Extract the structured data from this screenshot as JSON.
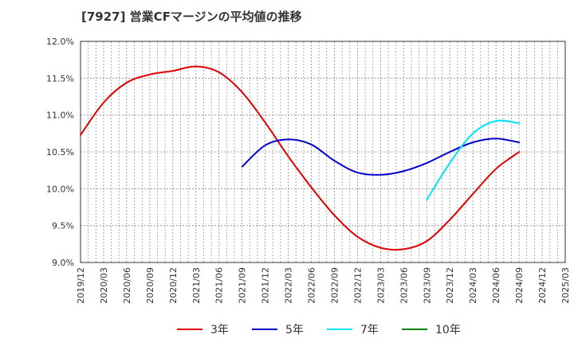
{
  "chart_data": {
    "type": "line",
    "title": "[7927]  営業CFマージンの平均値の推移",
    "x_ticks": [
      "2019/12",
      "2020/03",
      "2020/06",
      "2020/09",
      "2020/12",
      "2021/03",
      "2021/06",
      "2021/09",
      "2021/12",
      "2022/03",
      "2022/06",
      "2022/09",
      "2022/12",
      "2023/03",
      "2023/06",
      "2023/09",
      "2023/12",
      "2024/03",
      "2024/06",
      "2024/09",
      "2024/12",
      "2025/03"
    ],
    "y_ticks": [
      "9.0%",
      "9.5%",
      "10.0%",
      "10.5%",
      "11.0%",
      "11.5%",
      "12.0%"
    ],
    "ylim": [
      9.0,
      12.0
    ],
    "grid": true,
    "legend_position": "bottom",
    "series": [
      {
        "name": "3年",
        "color": "#e00000",
        "x": [
          "2019/12",
          "2020/03",
          "2020/06",
          "2020/09",
          "2020/12",
          "2021/03",
          "2021/06",
          "2021/09",
          "2021/12",
          "2022/03",
          "2022/06",
          "2022/09",
          "2022/12",
          "2023/03",
          "2023/06",
          "2023/09",
          "2023/12",
          "2024/03",
          "2024/06",
          "2024/09"
        ],
        "values": [
          10.73,
          11.17,
          11.44,
          11.55,
          11.6,
          11.66,
          11.58,
          11.31,
          10.9,
          10.44,
          10.02,
          9.64,
          9.35,
          9.2,
          9.18,
          9.29,
          9.58,
          9.93,
          10.27,
          10.5
        ]
      },
      {
        "name": "5年",
        "color": "#0000cc",
        "x": [
          "2021/09",
          "2021/12",
          "2022/03",
          "2022/06",
          "2022/09",
          "2022/12",
          "2023/03",
          "2023/06",
          "2023/09",
          "2023/12",
          "2024/03",
          "2024/06",
          "2024/09"
        ],
        "values": [
          10.3,
          10.59,
          10.67,
          10.6,
          10.38,
          10.22,
          10.19,
          10.24,
          10.35,
          10.5,
          10.63,
          10.68,
          10.63
        ]
      },
      {
        "name": "7年",
        "color": "#00e5ff",
        "x": [
          "2023/09",
          "2023/12",
          "2024/03",
          "2024/06",
          "2024/09"
        ],
        "values": [
          9.85,
          10.35,
          10.75,
          10.92,
          10.89
        ]
      },
      {
        "name": "10年",
        "color": "#008000",
        "x": [],
        "values": []
      }
    ]
  }
}
